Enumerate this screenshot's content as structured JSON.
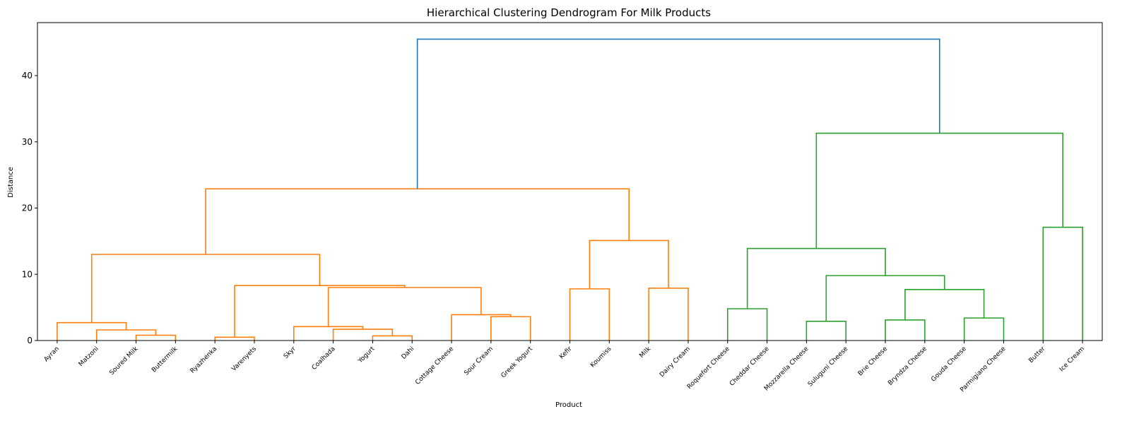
{
  "chart_data": {
    "type": "dendrogram",
    "title": "Hierarchical Clustering Dendrogram For Milk Products",
    "xlabel": "Product",
    "ylabel": "Distance",
    "ylim": [
      0,
      48
    ],
    "yticks": [
      0,
      10,
      20,
      30,
      40
    ],
    "grid": false,
    "leaves": [
      "Ayran",
      "Matzoni",
      "Soured Milk",
      "Buttermilk",
      "Ryazhenka",
      "Varenyets",
      "Skyr",
      "Coalhada",
      "Yogurt",
      "Dahi",
      "Cottage Cheese",
      "Sour Cream",
      "Greek Yogurt",
      "Kefir",
      "Koumiss",
      "Milk",
      "Dairy Cream",
      "Roquefort Cheese",
      "Cheddar Cheese",
      "Mozzarella Cheese",
      "Suluguni Cheese",
      "Brie Cheese",
      "Bryndza Cheese",
      "Gouda Cheese",
      "Parmigiano Cheese",
      "Butter",
      "Ice Cream"
    ],
    "colors": {
      "left_cluster": "#ff7f0e",
      "right_cluster": "#2ca02c",
      "root": "#1f77b4"
    },
    "merges": [
      {
        "id": "m0",
        "left": "Soured Milk",
        "right": "Buttermilk",
        "height": 0.8,
        "color": "left_cluster"
      },
      {
        "id": "m1",
        "left": "Matzoni",
        "right": "m0",
        "height": 1.6,
        "color": "left_cluster"
      },
      {
        "id": "m2",
        "left": "Ayran",
        "right": "m1",
        "height": 2.7,
        "color": "left_cluster"
      },
      {
        "id": "m3",
        "left": "Ryazhenka",
        "right": "Varenyets",
        "height": 0.5,
        "color": "left_cluster"
      },
      {
        "id": "m4",
        "left": "Yogurt",
        "right": "Dahi",
        "height": 0.7,
        "color": "left_cluster"
      },
      {
        "id": "m5",
        "left": "Coalhada",
        "right": "m4",
        "height": 1.7,
        "color": "left_cluster"
      },
      {
        "id": "m6",
        "left": "Skyr",
        "right": "m5",
        "height": 2.1,
        "color": "left_cluster"
      },
      {
        "id": "m7",
        "left": "Sour Cream",
        "right": "Greek Yogurt",
        "height": 3.6,
        "color": "left_cluster"
      },
      {
        "id": "m8",
        "left": "Cottage Cheese",
        "right": "m7",
        "height": 3.9,
        "color": "left_cluster"
      },
      {
        "id": "m9",
        "left": "m6",
        "right": "m8",
        "height": 8.0,
        "color": "left_cluster"
      },
      {
        "id": "m10",
        "left": "m3",
        "right": "m9",
        "height": 8.3,
        "color": "left_cluster"
      },
      {
        "id": "m11",
        "left": "m2",
        "right": "m10",
        "height": 13.0,
        "color": "left_cluster"
      },
      {
        "id": "m12",
        "left": "Kefir",
        "right": "Koumiss",
        "height": 7.8,
        "color": "left_cluster"
      },
      {
        "id": "m13",
        "left": "Milk",
        "right": "Dairy Cream",
        "height": 7.9,
        "color": "left_cluster"
      },
      {
        "id": "m14",
        "left": "m12",
        "right": "m13",
        "height": 15.1,
        "color": "left_cluster"
      },
      {
        "id": "m15",
        "left": "m11",
        "right": "m14",
        "height": 22.9,
        "color": "left_cluster"
      },
      {
        "id": "m16",
        "left": "Roquefort Cheese",
        "right": "Cheddar Cheese",
        "height": 4.8,
        "color": "right_cluster"
      },
      {
        "id": "m17",
        "left": "Mozzarella Cheese",
        "right": "Suluguni Cheese",
        "height": 2.9,
        "color": "right_cluster"
      },
      {
        "id": "m18",
        "left": "Brie Cheese",
        "right": "Bryndza Cheese",
        "height": 3.1,
        "color": "right_cluster"
      },
      {
        "id": "m19",
        "left": "Gouda Cheese",
        "right": "Parmigiano Cheese",
        "height": 3.4,
        "color": "right_cluster"
      },
      {
        "id": "m20",
        "left": "m18",
        "right": "m19",
        "height": 7.7,
        "color": "right_cluster"
      },
      {
        "id": "m21",
        "left": "m17",
        "right": "m20",
        "height": 9.8,
        "color": "right_cluster"
      },
      {
        "id": "m22",
        "left": "m16",
        "right": "m21",
        "height": 13.9,
        "color": "right_cluster"
      },
      {
        "id": "m23",
        "left": "Butter",
        "right": "Ice Cream",
        "height": 17.1,
        "color": "right_cluster"
      },
      {
        "id": "m24",
        "left": "m22",
        "right": "m23",
        "height": 31.3,
        "color": "right_cluster"
      },
      {
        "id": "m25",
        "left": "m15",
        "right": "m24",
        "height": 45.5,
        "color": "root"
      }
    ]
  }
}
